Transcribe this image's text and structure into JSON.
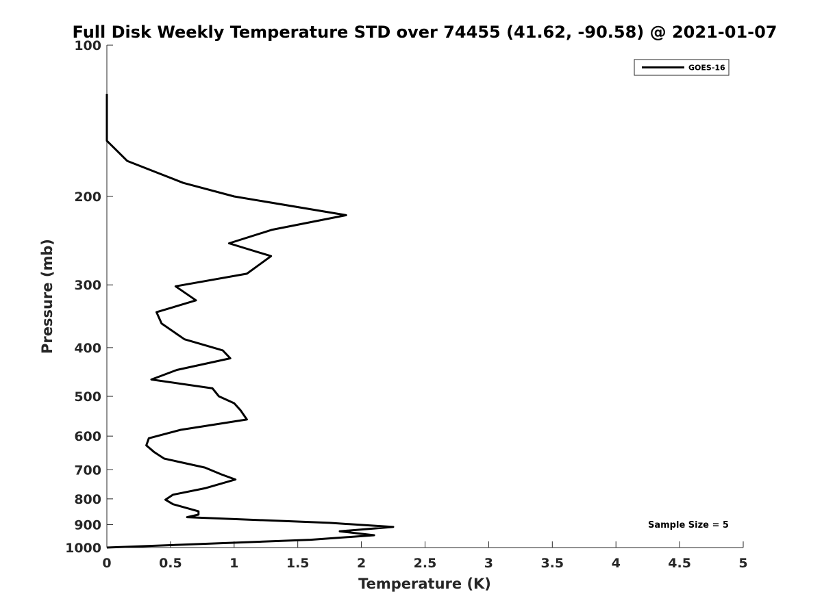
{
  "chart_data": {
    "type": "line",
    "title": "Full Disk Weekly Temperature STD over 74455 (41.62, -90.58) @ 2021-01-07",
    "xlabel": "Temperature (K)",
    "ylabel": "Pressure (mb)",
    "xlim": [
      0,
      5
    ],
    "ylim": [
      1000,
      100
    ],
    "yscale": "log",
    "x_ticks": [
      0,
      0.5,
      1,
      1.5,
      2,
      2.5,
      3,
      3.5,
      4,
      4.5,
      5
    ],
    "x_tick_labels": [
      "0",
      "0.5",
      "1",
      "1.5",
      "2",
      "2.5",
      "3",
      "3.5",
      "4",
      "4.5",
      "5"
    ],
    "y_ticks": [
      100,
      200,
      300,
      400,
      500,
      600,
      700,
      800,
      900,
      1000
    ],
    "y_tick_labels": [
      "100",
      "200",
      "300",
      "400",
      "500",
      "600",
      "700",
      "800",
      "900",
      "1000"
    ],
    "grid": false,
    "legend_position": "top-right",
    "line_color": "#000000",
    "annotation": "Sample Size = 5",
    "series": [
      {
        "name": "GOES-16",
        "points": [
          [
            0,
            125
          ],
          [
            0,
            145
          ],
          [
            0,
            155
          ],
          [
            0.16,
            170
          ],
          [
            0.6,
            188
          ],
          [
            1.0,
            200
          ],
          [
            1.88,
            218
          ],
          [
            1.3,
            233
          ],
          [
            0.96,
            248
          ],
          [
            1.29,
            263
          ],
          [
            1.1,
            285
          ],
          [
            0.54,
            302
          ],
          [
            0.7,
            322
          ],
          [
            0.39,
            340
          ],
          [
            0.43,
            358
          ],
          [
            0.61,
            385
          ],
          [
            0.91,
            405
          ],
          [
            0.97,
            420
          ],
          [
            0.55,
            443
          ],
          [
            0.35,
            463
          ],
          [
            0.83,
            482
          ],
          [
            0.88,
            500
          ],
          [
            1.0,
            516
          ],
          [
            1.05,
            533
          ],
          [
            1.1,
            556
          ],
          [
            0.58,
            583
          ],
          [
            0.33,
            606
          ],
          [
            0.31,
            626
          ],
          [
            0.37,
            645
          ],
          [
            0.45,
            665
          ],
          [
            0.77,
            693
          ],
          [
            0.9,
            715
          ],
          [
            1.01,
            732
          ],
          [
            0.77,
            762
          ],
          [
            0.52,
            785
          ],
          [
            0.46,
            803
          ],
          [
            0.52,
            820
          ],
          [
            0.72,
            847
          ],
          [
            0.72,
            860
          ],
          [
            0.63,
            870
          ],
          [
            1.75,
            893
          ],
          [
            2.25,
            910
          ],
          [
            1.83,
            928
          ],
          [
            2.1,
            945
          ],
          [
            1.6,
            965
          ],
          [
            0,
            1000
          ]
        ]
      }
    ]
  }
}
